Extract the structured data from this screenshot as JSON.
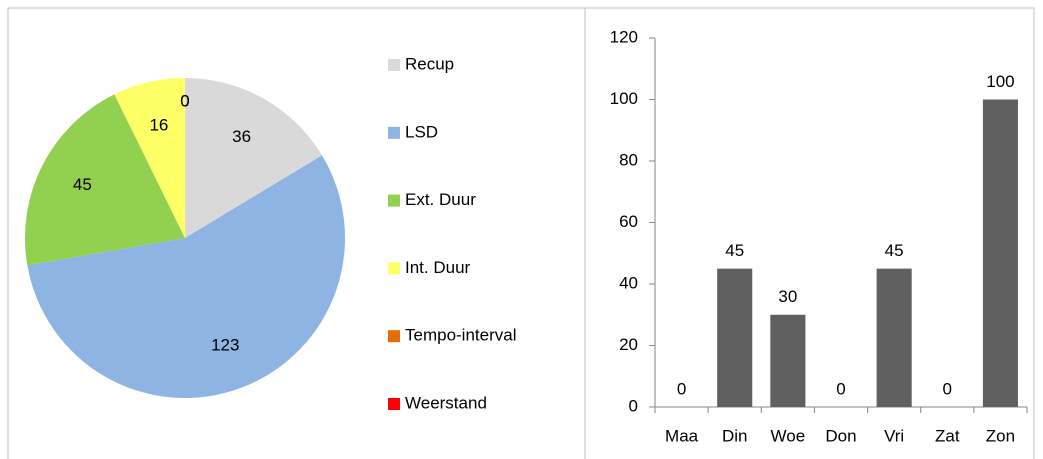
{
  "chart_data": [
    {
      "type": "pie",
      "categories": [
        "Recup",
        "LSD",
        "Ext. Duur",
        "Int. Duur",
        "Tempo-interval",
        "Weerstand"
      ],
      "values": [
        36,
        123,
        45,
        16,
        0,
        0
      ],
      "colors": [
        "#d9d9d9",
        "#8eb4e3",
        "#92d050",
        "#ffff66",
        "#e46c0a",
        "#ff0000"
      ],
      "legend": "right"
    },
    {
      "type": "bar",
      "categories": [
        "Maa",
        "Din",
        "Woe",
        "Don",
        "Vri",
        "Zat",
        "Zon"
      ],
      "values": [
        0,
        45,
        30,
        0,
        45,
        0,
        100
      ],
      "color": "#606060",
      "ylim": [
        0,
        120
      ],
      "yticks": [
        0,
        20,
        40,
        60,
        80,
        100,
        120
      ],
      "grid": false
    }
  ]
}
